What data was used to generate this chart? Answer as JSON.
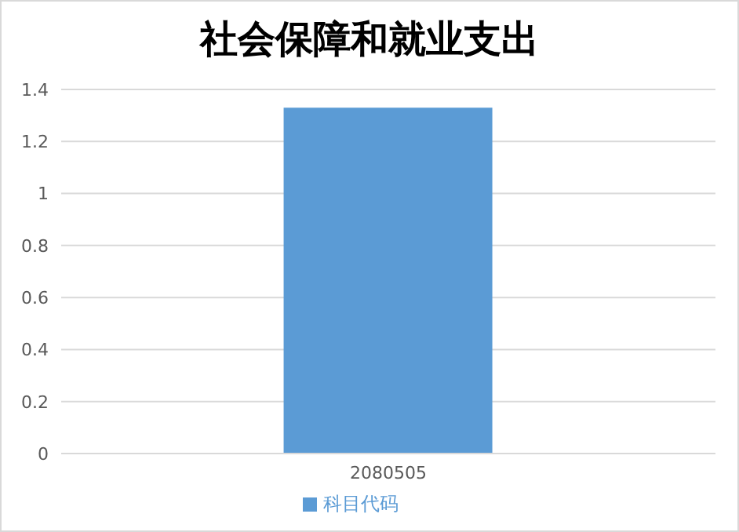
{
  "chart_data": {
    "type": "bar",
    "title": "社会保障和就业支出",
    "categories": [
      "2080505"
    ],
    "series": [
      {
        "name": "科目代码",
        "color": "#5b9bd5",
        "values": [
          1.33
        ]
      }
    ],
    "ylim": [
      0,
      1.4
    ],
    "yticks": [
      0,
      0.2,
      0.4,
      0.6,
      0.8,
      1,
      1.2,
      1.4
    ],
    "grid": "y",
    "legend": "bottom"
  }
}
